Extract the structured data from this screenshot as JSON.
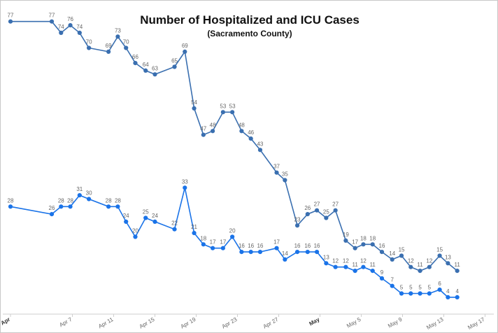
{
  "chart_data": {
    "type": "line",
    "title": "Number of Hospitalized and ICU Cases",
    "subtitle": "(Sacramento County)",
    "x_tick_labels": [
      "Apr",
      "Apr 7",
      "Apr 11",
      "Apr 15",
      "Apr 19",
      "Apr 23",
      "Apr 27",
      "May",
      "May 5",
      "May 9",
      "May 13",
      "May 17"
    ],
    "x_tick_days": [
      1,
      7,
      11,
      15,
      19,
      23,
      27,
      31,
      35,
      39,
      43,
      47
    ],
    "bold_ticks": [
      "Apr",
      "May"
    ],
    "ylim": [
      0,
      80
    ],
    "grid": false,
    "legend": "none",
    "series": [
      {
        "color": "#3a6fb0",
        "points": [
          [
            1,
            77
          ],
          [
            5,
            77
          ],
          [
            5.9,
            74
          ],
          [
            6.8,
            76
          ],
          [
            7.7,
            74
          ],
          [
            8.6,
            70
          ],
          [
            10.5,
            69
          ],
          [
            11.4,
            73
          ],
          [
            12.2,
            70
          ],
          [
            13.1,
            66
          ],
          [
            14.1,
            64
          ],
          [
            15,
            63
          ],
          [
            16.9,
            65
          ],
          [
            17.9,
            69
          ],
          [
            18.8,
            54
          ],
          [
            19.7,
            47
          ],
          [
            20.6,
            48
          ],
          [
            21.6,
            53
          ],
          [
            22.5,
            53
          ],
          [
            23.4,
            48
          ],
          [
            24.3,
            46
          ],
          [
            25.2,
            43
          ],
          [
            26.8,
            37
          ],
          [
            27.6,
            35
          ],
          [
            28.8,
            23
          ],
          [
            29.8,
            26
          ],
          [
            30.7,
            27
          ],
          [
            31.6,
            25
          ],
          [
            32.5,
            27
          ],
          [
            33.5,
            19
          ],
          [
            34.4,
            17
          ],
          [
            35.2,
            18
          ],
          [
            36.1,
            18
          ],
          [
            37,
            16
          ],
          [
            38,
            14
          ],
          [
            38.9,
            15
          ],
          [
            39.8,
            12
          ],
          [
            40.7,
            11
          ],
          [
            41.6,
            12
          ],
          [
            42.6,
            15
          ],
          [
            43.4,
            13
          ],
          [
            44.3,
            11
          ]
        ],
        "labels": [
          "77",
          "77",
          "74",
          "76",
          "74",
          "70",
          "69",
          "73",
          "70",
          "66",
          "64",
          "63",
          "65",
          "69",
          "54",
          "47",
          "48",
          "53",
          "53",
          "48",
          "46",
          "43",
          "37",
          "35",
          "23",
          "26",
          "27",
          "25",
          "27",
          "19",
          "17",
          "18",
          "18",
          "16",
          "14",
          "15",
          "12",
          "11",
          "12",
          "15",
          "13",
          "11"
        ]
      },
      {
        "color": "#1a73e8",
        "points": [
          [
            1,
            28
          ],
          [
            5,
            26
          ],
          [
            5.9,
            28
          ],
          [
            6.8,
            28
          ],
          [
            7.7,
            31
          ],
          [
            8.6,
            30
          ],
          [
            10.5,
            28
          ],
          [
            11.4,
            28
          ],
          [
            12.2,
            24
          ],
          [
            13.1,
            20
          ],
          [
            14.1,
            25
          ],
          [
            15,
            24
          ],
          [
            16.9,
            22
          ],
          [
            17.9,
            33
          ],
          [
            18.8,
            21
          ],
          [
            19.7,
            18
          ],
          [
            20.6,
            17
          ],
          [
            21.6,
            17
          ],
          [
            22.5,
            20
          ],
          [
            23.4,
            16
          ],
          [
            24.3,
            16
          ],
          [
            25.2,
            16
          ],
          [
            26.8,
            17
          ],
          [
            27.6,
            14
          ],
          [
            28.8,
            16
          ],
          [
            29.8,
            16
          ],
          [
            30.7,
            16
          ],
          [
            31.6,
            13
          ],
          [
            32.5,
            12
          ],
          [
            33.5,
            12
          ],
          [
            34.4,
            11
          ],
          [
            35.2,
            12
          ],
          [
            36.1,
            11
          ],
          [
            37,
            9
          ],
          [
            38,
            7
          ],
          [
            38.9,
            5
          ],
          [
            39.8,
            5
          ],
          [
            40.7,
            5
          ],
          [
            41.6,
            5
          ],
          [
            42.6,
            6
          ],
          [
            43.4,
            4
          ],
          [
            44.3,
            4
          ]
        ],
        "labels": [
          "28",
          "26",
          "28",
          "28",
          "31",
          "30",
          "28",
          "28",
          "24",
          "20",
          "25",
          "24",
          "22",
          "33",
          "21",
          "18",
          "17",
          "17",
          "20",
          "16",
          "16",
          "16",
          "17",
          "14",
          "16",
          "16",
          "16",
          "13",
          "12",
          "12",
          "11",
          "12",
          "11",
          "9",
          "7",
          "5",
          "5",
          "5",
          "5",
          "6",
          "4",
          "4"
        ]
      }
    ]
  }
}
